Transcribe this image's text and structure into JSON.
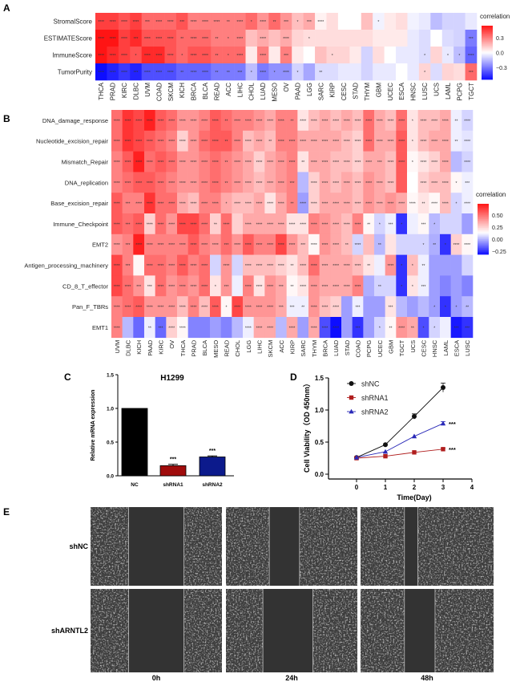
{
  "panel_labels": [
    "A",
    "B",
    "C",
    "D",
    "E"
  ],
  "chart_data": [
    {
      "type": "heatmap",
      "panel": "A",
      "legend_title": "correlation",
      "legend_ticks": [
        0.3,
        0.0,
        -0.3
      ],
      "legend_tick_labels": [
        "0.3",
        "0.0",
        "−0.3"
      ],
      "value_range": [
        -0.55,
        0.55
      ],
      "colors": {
        "low": "#0000ff",
        "mid": "#ffffff",
        "high": "#ff0000"
      },
      "rows": [
        "StromalScore",
        "ESTIMATEScore",
        "ImmuneScore",
        "TumorPurity"
      ],
      "columns": [
        "THCA",
        "PRAD",
        "KIRC",
        "DLBC",
        "UVM",
        "COAD",
        "SKCM",
        "KICH",
        "BRCA",
        "BLCA",
        "READ",
        "ACC",
        "LIHC",
        "CHOL",
        "LUAD",
        "MESO",
        "OV",
        "PAAD",
        "LGG",
        "SARC",
        "KIRP",
        "CESC",
        "STAD",
        "THYM",
        "GBM",
        "UCEC",
        "ESCA",
        "HNSC",
        "LUSC",
        "UCS",
        "LAML",
        "PCPG",
        "TGCT"
      ],
      "values": [
        [
          0.45,
          0.45,
          0.4,
          0.45,
          0.35,
          0.35,
          0.35,
          0.4,
          0.3,
          0.3,
          0.3,
          0.3,
          0.3,
          0.35,
          0.25,
          0.35,
          0.25,
          0.15,
          0.2,
          0.03,
          0.08,
          0,
          0,
          0.15,
          -0.03,
          0.05,
          0.08,
          -0.03,
          -0.05,
          -0.15,
          -0.1,
          -0.1,
          -0.05
        ],
        [
          0.55,
          0.55,
          0.45,
          0.5,
          0.4,
          0.4,
          0.4,
          0.35,
          0.35,
          0.35,
          0.3,
          0.3,
          0.3,
          0.15,
          0.2,
          0.15,
          0.2,
          0.1,
          0.08,
          0.08,
          0.08,
          0.08,
          0.08,
          0.08,
          0.05,
          0.05,
          0.05,
          -0.05,
          -0.08,
          0,
          -0.08,
          -0.1,
          -0.3
        ],
        [
          0.55,
          0.5,
          0.45,
          0.4,
          0.5,
          0.5,
          0.4,
          0.35,
          0.4,
          0.4,
          0.35,
          0.35,
          0.35,
          0.05,
          0.3,
          0.05,
          0.3,
          0.05,
          0,
          0.15,
          0.1,
          0.1,
          0.05,
          -0.1,
          0.08,
          0,
          -0.05,
          -0.05,
          -0.08,
          0.1,
          -0.05,
          -0.15,
          -0.35
        ],
        [
          -0.55,
          -0.5,
          -0.45,
          -0.5,
          -0.4,
          -0.4,
          -0.4,
          -0.35,
          -0.35,
          -0.35,
          -0.3,
          -0.3,
          -0.3,
          -0.15,
          -0.3,
          -0.25,
          -0.25,
          -0.1,
          -0.2,
          -0.08,
          -0.08,
          -0.05,
          -0.05,
          -0.1,
          -0.05,
          -0.05,
          0,
          -0.05,
          0.1,
          -0.08,
          0.1,
          0.08,
          0.35
        ]
      ],
      "significance_stars": [
        "444434434442414231340000100000000",
        "444344424421404040100000000000003",
        "444144414421404030001000000010114",
        "444344424422314141020000000010003"
      ]
    },
    {
      "type": "heatmap",
      "panel": "B",
      "legend_title": "correlation",
      "legend_ticks": [
        0.5,
        0.25,
        0.0,
        -0.25
      ],
      "legend_tick_labels": [
        "0.50",
        "0.25",
        "0.00",
        "−0.25"
      ],
      "value_range": [
        -0.32,
        0.73
      ],
      "colors": {
        "low": "#0000ff",
        "mid": "#ffffff",
        "high": "#ff0000"
      },
      "rows": [
        "DNA_damage_response",
        "Nucleotide_excision_repair",
        "Mismatch_Repair",
        "DNA_replication",
        "Base_excision_repair",
        "Immune_Checkpoint",
        "EMT2",
        "Antigen_processing_machinery",
        "CD_8_T_effector",
        "Pan_F_TBRs",
        "EMT1"
      ],
      "columns": [
        "UVM",
        "DLBC",
        "KICH",
        "PAAD",
        "KIRC",
        "OV",
        "THCA",
        "PRAD",
        "BLCA",
        "MESO",
        "READ",
        "CHOL",
        "LGG",
        "LIHC",
        "SKCM",
        "ACC",
        "KIRP",
        "SARC",
        "THYM",
        "BRCA",
        "LUAD",
        "STAD",
        "COAD",
        "PCPG",
        "UCEC",
        "GBM",
        "TGCT",
        "UCS",
        "CESC",
        "HNSC",
        "LAML",
        "ESCA",
        "LUSC"
      ],
      "values": [
        [
          0.5,
          0.65,
          0.6,
          0.7,
          0.55,
          0.5,
          0.4,
          0.4,
          0.45,
          0.55,
          0.5,
          0.45,
          0.45,
          0.4,
          0.35,
          0.45,
          0.45,
          0.2,
          0.3,
          0.35,
          0.3,
          0.35,
          0.3,
          0.5,
          0.35,
          0.3,
          0.5,
          0.2,
          0.3,
          0.3,
          0.35,
          0.1,
          0.05
        ],
        [
          0.5,
          0.65,
          0.6,
          0.55,
          0.5,
          0.45,
          0.25,
          0.4,
          0.5,
          0.55,
          0.55,
          0.45,
          0.3,
          0.35,
          0.3,
          0.45,
          0.45,
          0.35,
          0.35,
          0.35,
          0.35,
          0.3,
          0.25,
          0.5,
          0.35,
          0.35,
          0.55,
          0.2,
          0.3,
          0.35,
          0.35,
          0.1,
          0.08
        ],
        [
          0.45,
          0.55,
          0.7,
          0.5,
          0.55,
          0.5,
          0.4,
          0.4,
          0.45,
          0.5,
          0.45,
          0.4,
          0.35,
          0.25,
          0.35,
          0.4,
          0.45,
          0.2,
          0.35,
          0.35,
          0.3,
          0.3,
          0.25,
          0.35,
          0.35,
          0.3,
          0.55,
          0.15,
          0.2,
          0.25,
          0.35,
          0,
          0.05
        ],
        [
          0.45,
          0.5,
          0.55,
          0.55,
          0.5,
          0.45,
          0.4,
          0.4,
          0.45,
          0.5,
          0.45,
          0.4,
          0.35,
          0.3,
          0.35,
          0.4,
          0.45,
          0,
          0.25,
          0.35,
          0.3,
          0.35,
          0.3,
          0.4,
          0.35,
          0.3,
          0.55,
          0.13,
          0.25,
          0.3,
          0.3,
          0.15,
          0.1
        ],
        [
          0.55,
          0.45,
          0.45,
          0.65,
          0.5,
          0.5,
          0.35,
          0.3,
          0.45,
          0.45,
          0.35,
          0.3,
          0.3,
          0.35,
          0.2,
          0.35,
          0.45,
          -0.05,
          0.25,
          0.35,
          0.35,
          0.35,
          0.3,
          0.4,
          0.35,
          0.4,
          0.35,
          0.15,
          0.2,
          0.15,
          0.3,
          0.05,
          0.1
        ],
        [
          0.55,
          0.5,
          0.55,
          0.25,
          0.5,
          0.4,
          0.6,
          0.6,
          0.5,
          0.25,
          0.5,
          0.25,
          0.35,
          0.35,
          0.35,
          0.35,
          0.2,
          0.2,
          0.45,
          0.4,
          0.35,
          0.3,
          0.45,
          0.15,
          0.05,
          0.1,
          -0.25,
          0.1,
          0.15,
          0,
          0.05,
          0.05,
          -0.05
        ],
        [
          0.4,
          0.45,
          0.7,
          0.45,
          0.45,
          0.45,
          0.45,
          0.55,
          0.45,
          0.4,
          0.5,
          0.4,
          0.55,
          0.45,
          0.45,
          0.6,
          0.4,
          0.3,
          0.15,
          0.4,
          0.35,
          0.3,
          0.05,
          0.3,
          0,
          0.2,
          0.05,
          0.05,
          0.05,
          -0.02,
          -0.25,
          0.25,
          0.15
        ],
        [
          0.6,
          0.45,
          0.15,
          0.5,
          0.5,
          0.45,
          0.55,
          0.45,
          0.5,
          0.05,
          0.4,
          0.05,
          0.3,
          0.3,
          0.3,
          0.25,
          0.2,
          0.3,
          0.5,
          0.35,
          0.35,
          0.35,
          0.3,
          0.2,
          0.1,
          0.4,
          -0.25,
          0.3,
          0.1,
          -0.05,
          -0.05,
          -0.05,
          0.05
        ],
        [
          0.6,
          0.5,
          0.4,
          0.2,
          0.5,
          0.4,
          0.45,
          0.4,
          0.5,
          0.2,
          0.4,
          0.1,
          0.45,
          0.2,
          0.4,
          0.35,
          0.15,
          0.2,
          0.4,
          0.35,
          0.35,
          0.35,
          0.45,
          -0.02,
          0.05,
          0.05,
          -0.25,
          0.2,
          0.1,
          -0.05,
          -0.1,
          -0.05,
          -0.1
        ],
        [
          0.45,
          0.5,
          0.55,
          0.4,
          0.4,
          0.4,
          0.3,
          0.45,
          0.3,
          0.55,
          0.15,
          0.6,
          0.4,
          0.4,
          0.4,
          0.35,
          0.1,
          0.1,
          0.4,
          0.3,
          0.25,
          -0.05,
          0.1,
          -0.05,
          -0.05,
          0.2,
          0,
          -0.05,
          0,
          -0.05,
          -0.25,
          -0.05,
          0
        ],
        [
          0.45,
          0,
          -0.15,
          0.1,
          -0.15,
          0.25,
          0.15,
          -0.1,
          -0.1,
          -0.05,
          -0.1,
          0,
          0.1,
          0.35,
          0.35,
          0,
          0.35,
          -0.05,
          0.35,
          -0.2,
          -0.35,
          -0.05,
          -0.25,
          -0.05,
          0.05,
          0.15,
          0.4,
          0.35,
          -0.2,
          0.05,
          0.1,
          -0.3,
          -0.25
        ]
      ],
      "significance_stars": [
        "444444444424444424444444444144424",
        "444444444424442444444444444144424",
        "444444444424444442444444344144404",
        "444444444424444430444444440044413",
        "434444444414444424444444444424414",
        "434444444240444444444442131031000",
        "434444444434444443444240200012144",
        "430444444040444424444442041120000",
        "443344444130444324444440201130000",
        "444444444414444332444030030001112",
        "400234400000444040444030124211033"
      ]
    },
    {
      "type": "bar",
      "panel": "C",
      "title": "H1299",
      "ylabel": "Relative mRNA expression",
      "xlabel": "",
      "categories": [
        "NC",
        "shRNA1",
        "shRNA2"
      ],
      "values": [
        1.0,
        0.15,
        0.28
      ],
      "errors": [
        0,
        0.02,
        0.015
      ],
      "annotations": [
        "",
        "***",
        "***"
      ],
      "bar_colors": [
        "#000000",
        "#a00c0c",
        "#0c1a8c"
      ],
      "ylim": [
        0,
        1.5
      ],
      "yticks": [
        "0.0",
        "0.5",
        "1.0",
        "1.5"
      ]
    },
    {
      "type": "line",
      "panel": "D",
      "xlabel": "Time(Day)",
      "ylabel": "Cell Viability（OD 450nm）",
      "x": [
        0,
        1,
        2,
        3
      ],
      "xlim": [
        0,
        4
      ],
      "xticks": [
        "0",
        "1",
        "2",
        "3",
        "4"
      ],
      "ylim": [
        0,
        1.5
      ],
      "yticks": [
        "0.0",
        "0.5",
        "1.0",
        "1.5"
      ],
      "legend_position": "top-left",
      "series": [
        {
          "name": "shNC",
          "values": [
            0.26,
            0.46,
            0.9,
            1.35
          ],
          "errors": [
            0.01,
            0.01,
            0.04,
            0.07
          ],
          "color": "#111111",
          "marker": "circle",
          "annotation": ""
        },
        {
          "name": "shRNA1",
          "values": [
            0.25,
            0.28,
            0.34,
            0.39
          ],
          "errors": [
            0.01,
            0.01,
            0.01,
            0.015
          ],
          "color": "#b01e1e",
          "marker": "square",
          "annotation": "***"
        },
        {
          "name": "shRNA2",
          "values": [
            0.26,
            0.35,
            0.59,
            0.79
          ],
          "errors": [
            0.01,
            0.01,
            0.01,
            0.03
          ],
          "color": "#2a2ab8",
          "marker": "triangle",
          "annotation": "***"
        }
      ]
    }
  ],
  "panel_e": {
    "row_labels": [
      "shNC",
      "shARNTL2"
    ],
    "column_labels": [
      "0h",
      "24h",
      "48h"
    ],
    "wound_fraction_open": [
      [
        0.42,
        0.23,
        0.1
      ],
      [
        0.42,
        0.38,
        0.23
      ]
    ]
  }
}
